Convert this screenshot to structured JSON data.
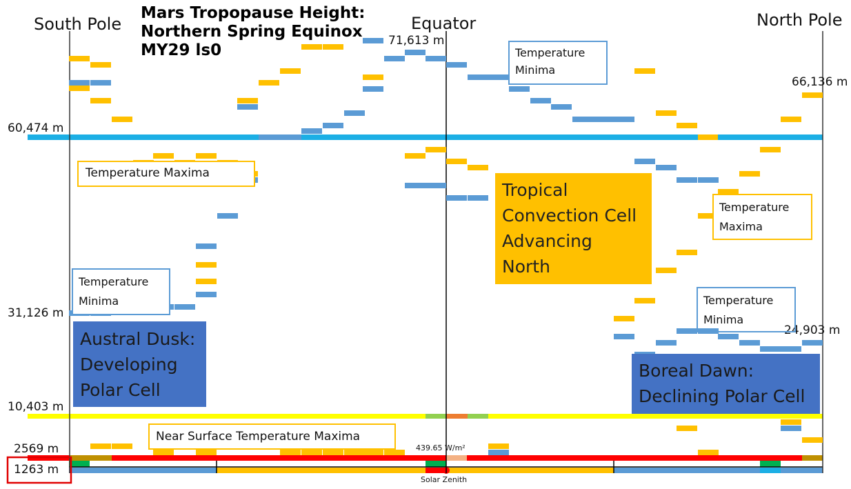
{
  "title": {
    "line1": "Mars Tropopause Height:",
    "line2": "Northern Spring Equinox",
    "line3": "MY29 ls0"
  },
  "poles": {
    "south": "South Pole",
    "equator": "Equator",
    "north": "North Pole"
  },
  "height_labels": {
    "peak": "71,613 m",
    "north_top": "66,136 m",
    "h60474": "60,474 m",
    "h31126": "31,126 m",
    "h24903": "24,903 m",
    "h10403": "10,403 m",
    "h2569": "2569 m",
    "h1263": "1263 m"
  },
  "annotations": {
    "temp_min_top": [
      "Temperature",
      "Minima"
    ],
    "temp_max_left": "Temperature Maxima",
    "temp_max_right": [
      "Temperature",
      "Maxima"
    ],
    "temp_min_left": [
      "Temperature",
      "Minima"
    ],
    "temp_min_right": [
      "Temperature",
      "Minima"
    ],
    "near_surface": "Near Surface Temperature Maxima",
    "tropical": [
      "Tropical",
      "Convection Cell",
      "Advancing",
      "North"
    ],
    "austral": [
      "Austral Dusk:",
      "Developing",
      "Polar Cell"
    ],
    "boreal": [
      "Boreal Dawn:",
      "Declining Polar Cell"
    ],
    "irradiance": "439.65 W/m²",
    "solar_zenith": "Solar Zenith"
  },
  "colors": {
    "orange": "#FFC000",
    "blue": "#5B9BD5",
    "cyan_line": "#1CAFE5",
    "yellow_line": "#FFFF00",
    "red_line": "#FF0000",
    "dark_blue_box": "#4472C4",
    "tropical_box": "#FFC000"
  }
}
